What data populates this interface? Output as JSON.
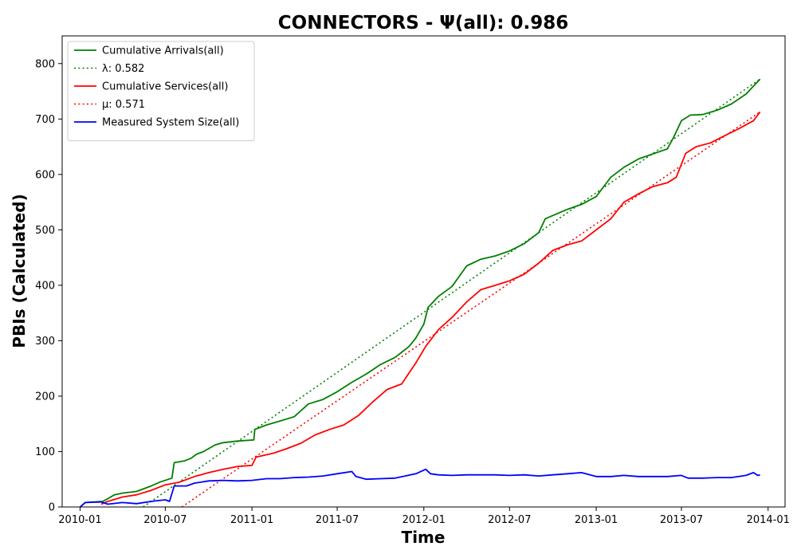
{
  "chart_data": {
    "type": "line",
    "title": "CONNECTORS -  Ψ(all): 0.986",
    "xlabel": "Time",
    "ylabel": "PBIs (Calculated)",
    "x_range": [
      "2009-11-24",
      "2014-02-06"
    ],
    "ylim": [
      0,
      850
    ],
    "x_ticks": [
      "2010-01",
      "2010-07",
      "2011-01",
      "2011-07",
      "2012-01",
      "2012-07",
      "2013-01",
      "2013-07",
      "2014-01"
    ],
    "y_ticks": [
      0,
      100,
      200,
      300,
      400,
      500,
      600,
      700,
      800
    ],
    "grid": false,
    "legend_position": "top-left",
    "series": [
      {
        "name": "Cumulative Arrivals(all)",
        "color": "#008000",
        "style": "solid",
        "points": [
          [
            "2010-01-01",
            0
          ],
          [
            "2010-01-12",
            8
          ],
          [
            "2010-02-18",
            10
          ],
          [
            "2010-03-01",
            15
          ],
          [
            "2010-03-15",
            22
          ],
          [
            "2010-04-01",
            25
          ],
          [
            "2010-05-01",
            28
          ],
          [
            "2010-06-01",
            38
          ],
          [
            "2010-06-20",
            45
          ],
          [
            "2010-07-15",
            52
          ],
          [
            "2010-07-20",
            80
          ],
          [
            "2010-08-10",
            83
          ],
          [
            "2010-08-25",
            88
          ],
          [
            "2010-09-05",
            95
          ],
          [
            "2010-09-20",
            100
          ],
          [
            "2010-10-15",
            112
          ],
          [
            "2010-11-01",
            116
          ],
          [
            "2010-12-01",
            119
          ],
          [
            "2011-01-05",
            121
          ],
          [
            "2011-01-07",
            140
          ],
          [
            "2011-02-01",
            148
          ],
          [
            "2011-03-01",
            155
          ],
          [
            "2011-04-01",
            163
          ],
          [
            "2011-05-01",
            186
          ],
          [
            "2011-06-01",
            194
          ],
          [
            "2011-07-01",
            208
          ],
          [
            "2011-08-01",
            225
          ],
          [
            "2011-09-01",
            240
          ],
          [
            "2011-10-01",
            257
          ],
          [
            "2011-11-01",
            270
          ],
          [
            "2011-12-01",
            290
          ],
          [
            "2011-12-15",
            305
          ],
          [
            "2012-01-01",
            330
          ],
          [
            "2012-01-10",
            360
          ],
          [
            "2012-02-01",
            380
          ],
          [
            "2012-03-01",
            398
          ],
          [
            "2012-04-01",
            435
          ],
          [
            "2012-05-01",
            447
          ],
          [
            "2012-06-01",
            453
          ],
          [
            "2012-07-01",
            462
          ],
          [
            "2012-08-01",
            475
          ],
          [
            "2012-09-01",
            495
          ],
          [
            "2012-09-15",
            520
          ],
          [
            "2012-10-01",
            526
          ],
          [
            "2012-11-01",
            537
          ],
          [
            "2012-12-01",
            546
          ],
          [
            "2013-01-01",
            560
          ],
          [
            "2013-02-01",
            595
          ],
          [
            "2013-03-01",
            613
          ],
          [
            "2013-04-01",
            628
          ],
          [
            "2013-05-01",
            637
          ],
          [
            "2013-06-01",
            646
          ],
          [
            "2013-06-15",
            668
          ],
          [
            "2013-07-01",
            697
          ],
          [
            "2013-07-20",
            707
          ],
          [
            "2013-08-15",
            708
          ],
          [
            "2013-09-15",
            716
          ],
          [
            "2013-10-15",
            727
          ],
          [
            "2013-11-15",
            745
          ],
          [
            "2013-12-15",
            772
          ]
        ]
      },
      {
        "name": "λ: 0.582",
        "color": "#008000",
        "style": "dotted",
        "points": [
          [
            "2010-05-15",
            0
          ],
          [
            "2013-12-15",
            772
          ]
        ]
      },
      {
        "name": "Cumulative Services(all)",
        "color": "#ff0000",
        "style": "solid",
        "points": [
          [
            "2010-02-15",
            5
          ],
          [
            "2010-03-01",
            10
          ],
          [
            "2010-04-01",
            18
          ],
          [
            "2010-05-01",
            22
          ],
          [
            "2010-06-01",
            30
          ],
          [
            "2010-07-01",
            40
          ],
          [
            "2010-08-01",
            45
          ],
          [
            "2010-09-01",
            55
          ],
          [
            "2010-10-01",
            62
          ],
          [
            "2010-11-01",
            68
          ],
          [
            "2010-12-01",
            73
          ],
          [
            "2011-01-01",
            75
          ],
          [
            "2011-01-10",
            90
          ],
          [
            "2011-02-15",
            97
          ],
          [
            "2011-03-15",
            105
          ],
          [
            "2011-04-15",
            115
          ],
          [
            "2011-05-15",
            130
          ],
          [
            "2011-06-15",
            140
          ],
          [
            "2011-07-15",
            148
          ],
          [
            "2011-08-15",
            165
          ],
          [
            "2011-09-15",
            190
          ],
          [
            "2011-10-15",
            212
          ],
          [
            "2011-11-15",
            222
          ],
          [
            "2011-12-15",
            260
          ],
          [
            "2012-01-05",
            290
          ],
          [
            "2012-02-01",
            320
          ],
          [
            "2012-03-01",
            342
          ],
          [
            "2012-04-01",
            370
          ],
          [
            "2012-05-01",
            392
          ],
          [
            "2012-06-01",
            400
          ],
          [
            "2012-07-01",
            408
          ],
          [
            "2012-08-01",
            420
          ],
          [
            "2012-09-01",
            440
          ],
          [
            "2012-10-01",
            463
          ],
          [
            "2012-11-01",
            473
          ],
          [
            "2012-12-01",
            480
          ],
          [
            "2013-01-01",
            500
          ],
          [
            "2013-02-01",
            520
          ],
          [
            "2013-03-01",
            550
          ],
          [
            "2013-04-01",
            565
          ],
          [
            "2013-05-01",
            578
          ],
          [
            "2013-06-01",
            585
          ],
          [
            "2013-06-20",
            595
          ],
          [
            "2013-07-10",
            638
          ],
          [
            "2013-08-01",
            650
          ],
          [
            "2013-09-01",
            657
          ],
          [
            "2013-10-01",
            670
          ],
          [
            "2013-11-01",
            683
          ],
          [
            "2013-12-01",
            697
          ],
          [
            "2013-12-15",
            713
          ]
        ]
      },
      {
        "name": "μ: 0.571",
        "color": "#ff0000",
        "style": "dotted",
        "points": [
          [
            "2010-08-05",
            0
          ],
          [
            "2013-12-15",
            713
          ]
        ]
      },
      {
        "name": "Measured System Size(all)",
        "color": "#0000ff",
        "style": "solid",
        "points": [
          [
            "2010-01-01",
            0
          ],
          [
            "2010-01-12",
            8
          ],
          [
            "2010-02-15",
            9
          ],
          [
            "2010-03-01",
            5
          ],
          [
            "2010-04-01",
            8
          ],
          [
            "2010-05-01",
            6
          ],
          [
            "2010-06-01",
            10
          ],
          [
            "2010-07-01",
            13
          ],
          [
            "2010-07-10",
            10
          ],
          [
            "2010-07-20",
            38
          ],
          [
            "2010-08-15",
            38
          ],
          [
            "2010-09-01",
            43
          ],
          [
            "2010-10-01",
            47
          ],
          [
            "2010-11-01",
            48
          ],
          [
            "2010-12-01",
            47
          ],
          [
            "2011-01-01",
            48
          ],
          [
            "2011-02-01",
            51
          ],
          [
            "2011-03-01",
            51
          ],
          [
            "2011-04-01",
            53
          ],
          [
            "2011-05-01",
            54
          ],
          [
            "2011-06-01",
            56
          ],
          [
            "2011-07-01",
            60
          ],
          [
            "2011-08-01",
            64
          ],
          [
            "2011-08-10",
            55
          ],
          [
            "2011-09-01",
            50
          ],
          [
            "2011-10-01",
            51
          ],
          [
            "2011-11-01",
            52
          ],
          [
            "2011-12-15",
            60
          ],
          [
            "2012-01-05",
            68
          ],
          [
            "2012-01-15",
            60
          ],
          [
            "2012-02-01",
            58
          ],
          [
            "2012-03-01",
            57
          ],
          [
            "2012-04-01",
            58
          ],
          [
            "2012-05-01",
            58
          ],
          [
            "2012-06-01",
            58
          ],
          [
            "2012-07-01",
            57
          ],
          [
            "2012-08-01",
            58
          ],
          [
            "2012-09-01",
            56
          ],
          [
            "2012-10-01",
            58
          ],
          [
            "2012-11-01",
            60
          ],
          [
            "2012-12-01",
            62
          ],
          [
            "2013-01-01",
            55
          ],
          [
            "2013-02-01",
            55
          ],
          [
            "2013-03-01",
            57
          ],
          [
            "2013-04-01",
            55
          ],
          [
            "2013-05-01",
            55
          ],
          [
            "2013-06-01",
            55
          ],
          [
            "2013-07-01",
            57
          ],
          [
            "2013-07-15",
            52
          ],
          [
            "2013-08-15",
            52
          ],
          [
            "2013-09-15",
            53
          ],
          [
            "2013-10-15",
            53
          ],
          [
            "2013-11-15",
            57
          ],
          [
            "2013-12-01",
            62
          ],
          [
            "2013-12-10",
            57
          ],
          [
            "2013-12-15",
            58
          ]
        ]
      }
    ]
  }
}
